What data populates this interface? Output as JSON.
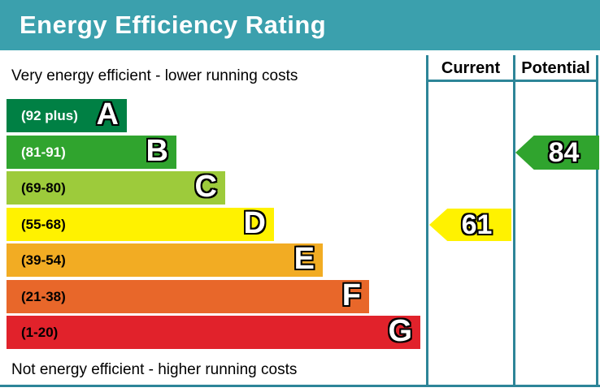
{
  "header": {
    "title": "Energy Efficiency Rating",
    "bg_color": "#3BA0AD"
  },
  "table": {
    "current_header": "Current",
    "potential_header": "Potential",
    "border_color": "#2D8598"
  },
  "captions": {
    "top": "Very energy efficient - lower running costs",
    "bottom": "Not energy efficient - higher running costs"
  },
  "bands": [
    {
      "letter": "A",
      "range": "(92 plus)",
      "color": "#008044",
      "range_text_color": "#ffffff"
    },
    {
      "letter": "B",
      "range": "(81-91)",
      "color": "#30A42E",
      "range_text_color": "#ffffff"
    },
    {
      "letter": "C",
      "range": "(69-80)",
      "color": "#9DCB3B",
      "range_text_color": "#000000"
    },
    {
      "letter": "D",
      "range": "(55-68)",
      "color": "#FFF200",
      "range_text_color": "#000000"
    },
    {
      "letter": "E",
      "range": "(39-54)",
      "color": "#F2AC23",
      "range_text_color": "#000000"
    },
    {
      "letter": "F",
      "range": "(21-38)",
      "color": "#E8672A",
      "range_text_color": "#000000"
    },
    {
      "letter": "G",
      "range": "(1-20)",
      "color": "#E1222B",
      "range_text_color": "#000000"
    }
  ],
  "ratings": {
    "current": {
      "value": "61",
      "band": "D",
      "color": "#FFF200"
    },
    "potential": {
      "value": "84",
      "band": "B",
      "color": "#30A42E"
    }
  },
  "chart_data": {
    "type": "bar",
    "title": "Energy Efficiency Rating",
    "categories": [
      "A",
      "B",
      "C",
      "D",
      "E",
      "F",
      "G"
    ],
    "band_ranges": [
      "92 plus",
      "81-91",
      "69-80",
      "55-68",
      "39-54",
      "21-38",
      "1-20"
    ],
    "band_colors": [
      "#008044",
      "#30A42E",
      "#9DCB3B",
      "#FFF200",
      "#F2AC23",
      "#E8672A",
      "#E1222B"
    ],
    "annotations": [
      "Very energy efficient - lower running costs",
      "Not energy efficient - higher running costs"
    ],
    "columns": [
      "Current",
      "Potential"
    ],
    "current": {
      "value": 61,
      "band": "D"
    },
    "potential": {
      "value": 84,
      "band": "B"
    }
  }
}
